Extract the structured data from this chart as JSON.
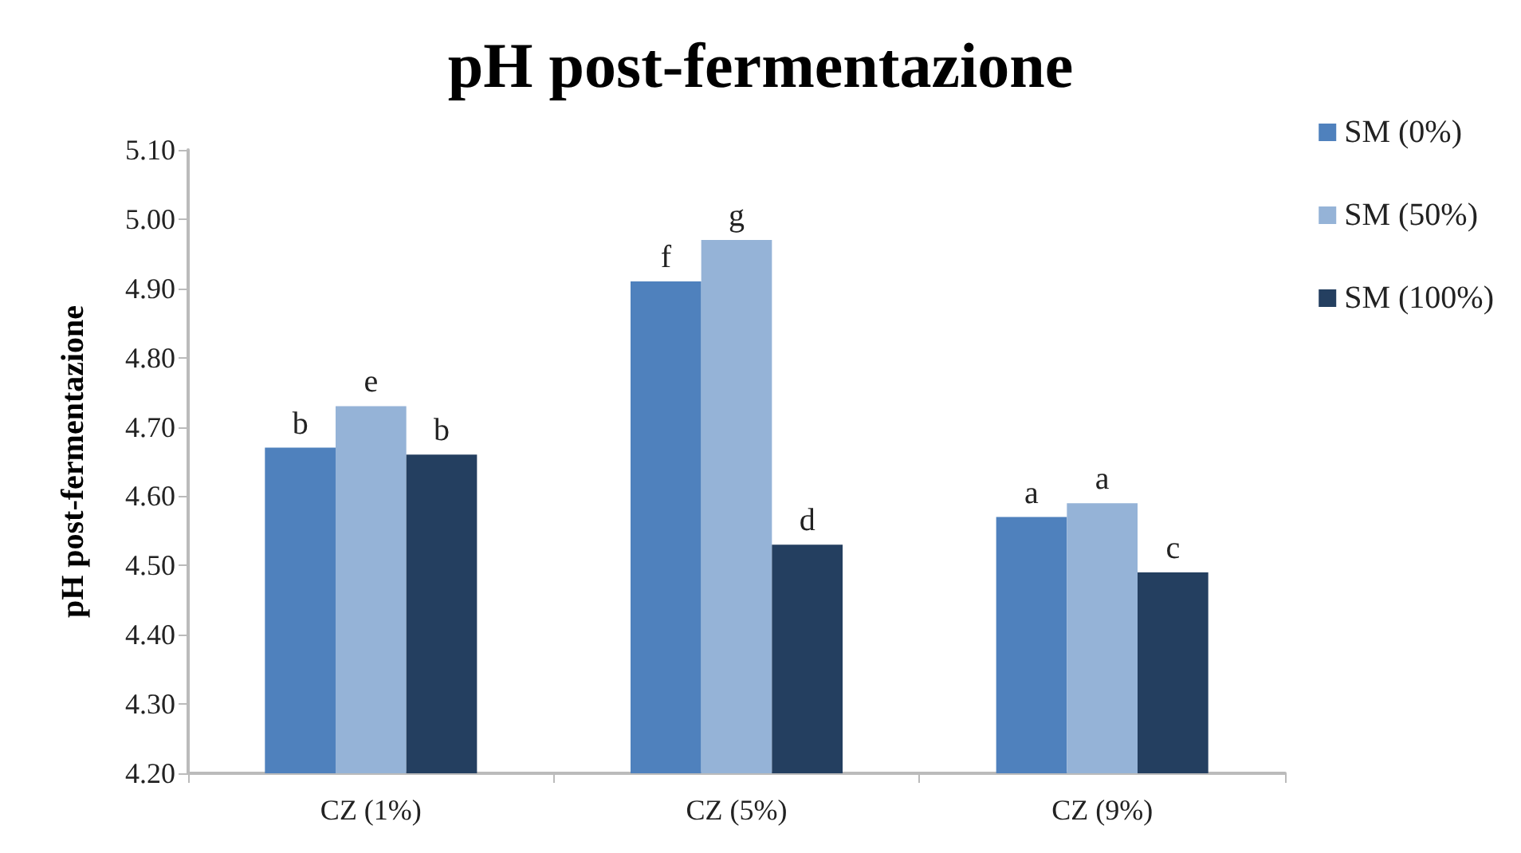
{
  "chart_data": {
    "type": "bar",
    "title": "pH post-fermentazione",
    "ylabel": "pH post-fermentazione",
    "categories": [
      "CZ (1%)",
      "CZ (5%)",
      "CZ (9%)"
    ],
    "series": [
      {
        "name": "SM (0%)",
        "color": "#4f81bd",
        "values": [
          4.67,
          4.91,
          4.57
        ],
        "value_labels": [
          "b",
          "f",
          "a"
        ]
      },
      {
        "name": "SM (50%)",
        "color": "#95b3d7",
        "values": [
          4.73,
          4.97,
          4.59
        ],
        "value_labels": [
          "e",
          "g",
          "a"
        ]
      },
      {
        "name": "SM (100%)",
        "color": "#243f60",
        "values": [
          4.66,
          4.53,
          4.49
        ],
        "value_labels": [
          "b",
          "d",
          "c"
        ]
      }
    ],
    "ylim": [
      4.2,
      5.1
    ],
    "yticks": [
      {
        "value": 4.2,
        "label": "4.20"
      },
      {
        "value": 4.3,
        "label": "4.30"
      },
      {
        "value": 4.4,
        "label": "4.40"
      },
      {
        "value": 4.5,
        "label": "4.50"
      },
      {
        "value": 4.6,
        "label": "4.60"
      },
      {
        "value": 4.7,
        "label": "4.70"
      },
      {
        "value": 4.8,
        "label": "4.80"
      },
      {
        "value": 4.9,
        "label": "4.90"
      },
      {
        "value": 5.0,
        "label": "5.00"
      },
      {
        "value": 5.1,
        "label": "5.10"
      }
    ],
    "grid": false,
    "legend": "top right"
  }
}
